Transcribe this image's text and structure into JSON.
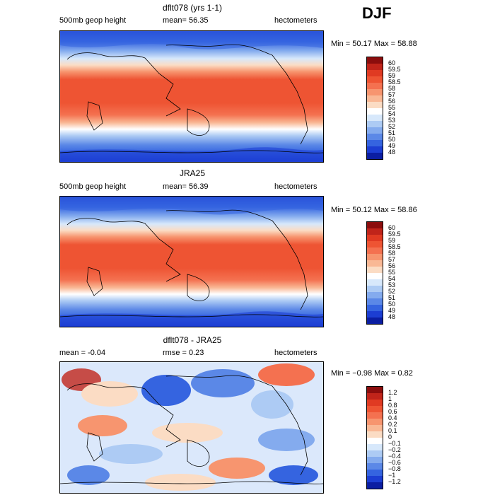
{
  "season": "DJF",
  "panels": [
    {
      "title": "dflt078 (yrs 1-1)",
      "left_text": "500mb geop height",
      "mean_text": "mean=  56.35",
      "units": "hectometers",
      "minmax": "Min =  50.17 Max =  58.88"
    },
    {
      "title": "JRA25",
      "left_text": "500mb geop height",
      "mean_text": "mean=  56.39",
      "units": "hectometers",
      "minmax": "Min =  50.12 Max =  58.86"
    },
    {
      "title": "dflt078 - JRA25",
      "left_text": "mean =   -0.04",
      "mean_text": "rmse =    0.23",
      "units": "hectometers",
      "minmax": "Min =  −0.98 Max =   0.82"
    }
  ],
  "colorbar_abs": {
    "labels": [
      "60",
      "59.5",
      "59",
      "58.5",
      "58",
      "57",
      "56",
      "55",
      "54",
      "53",
      "52",
      "51",
      "50",
      "49",
      "48"
    ],
    "colors": [
      "#8b0d0d",
      "#c0241a",
      "#e03a22",
      "#ee5433",
      "#f47150",
      "#f7956f",
      "#f9b895",
      "#fbdcc4",
      "#ffffff",
      "#d7e8fb",
      "#adcbf4",
      "#84abee",
      "#5b88e7",
      "#3564e0",
      "#1c3ed3",
      "#0b1ea2"
    ]
  },
  "colorbar_diff": {
    "labels": [
      "1.2",
      "1",
      "0.8",
      "0.6",
      "0.4",
      "0.2",
      "0.1",
      "0",
      "−0.1",
      "−0.2",
      "−0.4",
      "−0.6",
      "−0.8",
      "−1",
      "−1.2"
    ],
    "colors": [
      "#8b0d0d",
      "#c0241a",
      "#e03a22",
      "#ee5433",
      "#f47150",
      "#f7956f",
      "#f9b895",
      "#fbdcc4",
      "#ffffff",
      "#d7e8fb",
      "#adcbf4",
      "#84abee",
      "#5b88e7",
      "#3564e0",
      "#1c3ed3",
      "#0b1ea2"
    ]
  },
  "chart_data": [
    {
      "type": "heatmap",
      "title": "dflt078 (yrs 1-1)",
      "variable": "500mb geop height",
      "units": "hectometers",
      "mean": 56.35,
      "min": 50.17,
      "max": 58.88,
      "levels": [
        48,
        49,
        50,
        51,
        52,
        53,
        54,
        55,
        56,
        57,
        58,
        58.5,
        59,
        59.5,
        60
      ]
    },
    {
      "type": "heatmap",
      "title": "JRA25",
      "variable": "500mb geop height",
      "units": "hectometers",
      "mean": 56.39,
      "min": 50.12,
      "max": 58.86,
      "levels": [
        48,
        49,
        50,
        51,
        52,
        53,
        54,
        55,
        56,
        57,
        58,
        58.5,
        59,
        59.5,
        60
      ]
    },
    {
      "type": "heatmap",
      "title": "dflt078 - JRA25",
      "units": "hectometers",
      "mean": -0.04,
      "rmse": 0.23,
      "min": -0.98,
      "max": 0.82,
      "levels": [
        -1.2,
        -1,
        -0.8,
        -0.6,
        -0.4,
        -0.2,
        -0.1,
        0,
        0.1,
        0.2,
        0.4,
        0.6,
        0.8,
        1,
        1.2
      ]
    }
  ]
}
